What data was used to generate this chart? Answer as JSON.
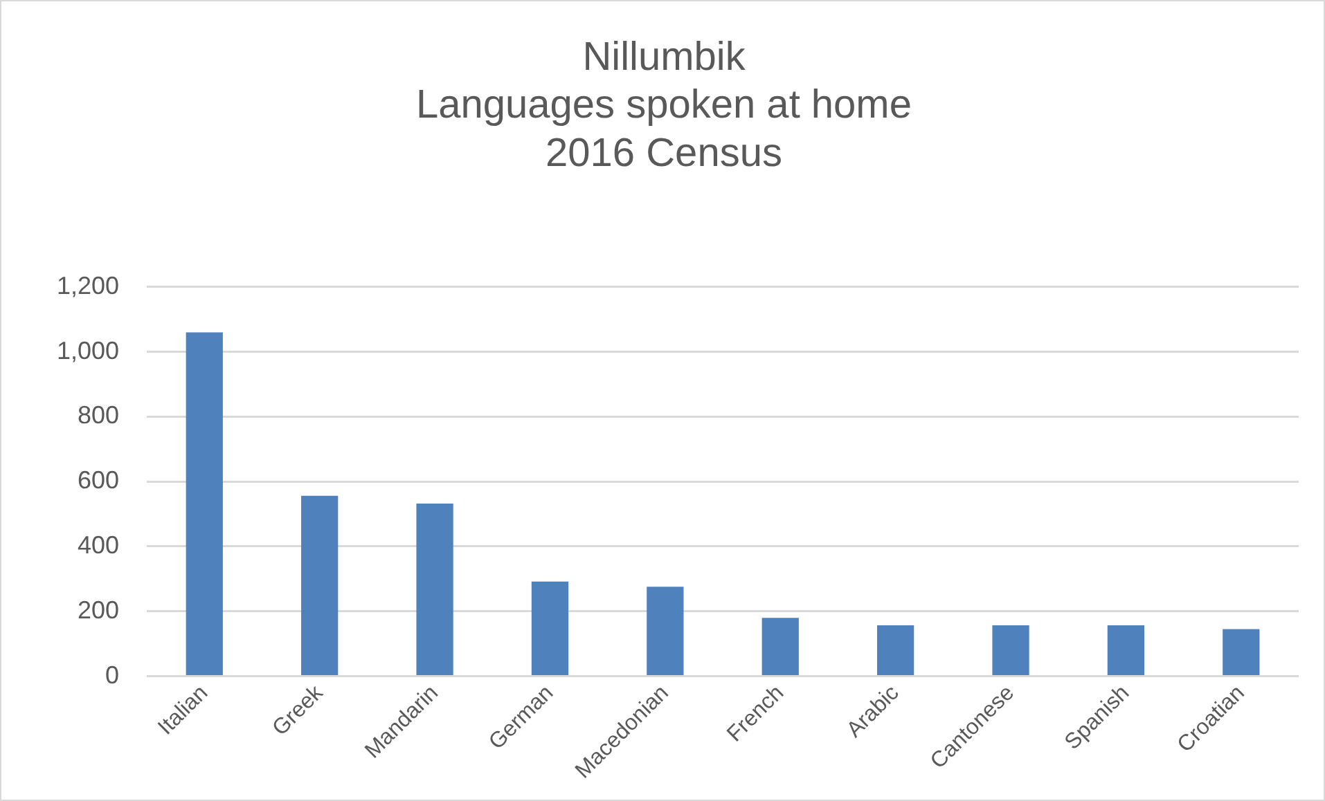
{
  "chart_data": {
    "type": "bar",
    "title": "Nillumbik\nLanguages spoken at home\n2016 Census",
    "categories": [
      "Italian",
      "Greek",
      "Mandarin",
      "German",
      "Macedonian",
      "French",
      "Arabic",
      "Cantonese",
      "Spanish",
      "Croatian"
    ],
    "values": [
      1060,
      556,
      532,
      292,
      276,
      180,
      157,
      157,
      157,
      145
    ],
    "color": "#4f81bd",
    "ylim": [
      0,
      1200
    ],
    "yticks": [
      0,
      {
        "value": 200,
        "label": "200"
      },
      {
        "value": 400,
        "label": "400"
      },
      {
        "value": 600,
        "label": "600"
      },
      {
        "value": 800,
        "label": "800"
      },
      {
        "value": 1000,
        "label": "1,000"
      },
      {
        "value": 1200,
        "label": "1,200"
      }
    ],
    "grid": "y",
    "legend": false
  }
}
